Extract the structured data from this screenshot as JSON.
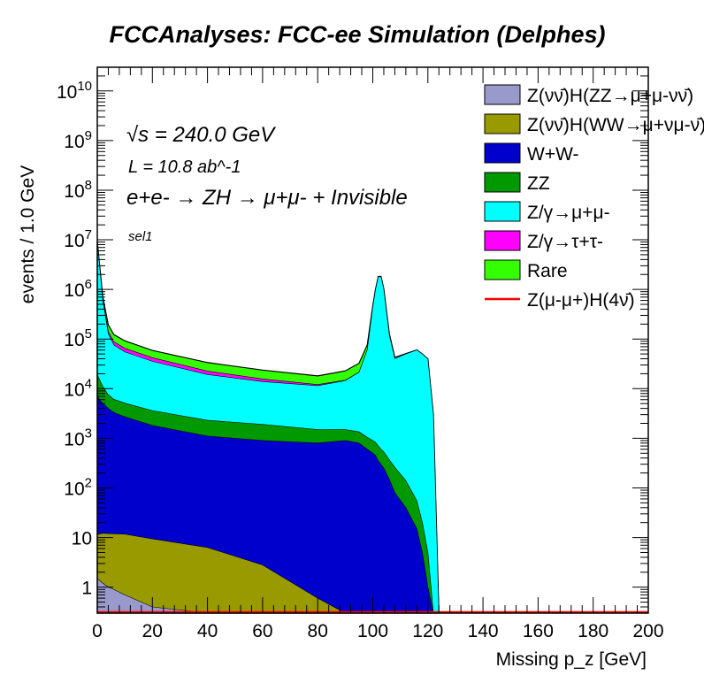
{
  "chart_data": {
    "type": "area",
    "title": "FCCAnalyses: FCC-ee Simulation (Delphes)",
    "xlabel": "Missing p_z [GeV]",
    "ylabel": "events / 1.0 GeV",
    "xlim": [
      0,
      200
    ],
    "ylim": [
      0.3,
      30000000000
    ],
    "log_y": true,
    "stacked": true,
    "grid": false,
    "legend_position": "top-right",
    "x_ticks": [
      "0",
      "20",
      "40",
      "60",
      "80",
      "100",
      "120",
      "140",
      "160",
      "180",
      "200"
    ],
    "y_ticks": [
      {
        "value": 1,
        "label": "1"
      },
      {
        "value": 10,
        "label": "10"
      },
      {
        "value": 100,
        "label": "10^2"
      },
      {
        "value": 1000,
        "label": "10^3"
      },
      {
        "value": 10000,
        "label": "10^4"
      },
      {
        "value": 100000,
        "label": "10^5"
      },
      {
        "value": 1000000,
        "label": "10^6"
      },
      {
        "value": 10000000,
        "label": "10^7"
      },
      {
        "value": 100000000,
        "label": "10^8"
      },
      {
        "value": 1000000000,
        "label": "10^9"
      },
      {
        "value": 10000000000,
        "label": "10^10"
      }
    ],
    "annotations": [
      {
        "text": "√s = 240.0 GeV"
      },
      {
        "text": "L = 10.8 ab^-1"
      },
      {
        "text": "e+e- → ZH → μ+μ- + Invisible"
      },
      {
        "text": "sel1"
      }
    ],
    "x": [
      0,
      2,
      4,
      6,
      10,
      20,
      40,
      60,
      80,
      90,
      95,
      98,
      100,
      101,
      102,
      103,
      104,
      106,
      108,
      112,
      116,
      118,
      120,
      122,
      124
    ],
    "series": [
      {
        "name": "Z(νν̄)H(ZZ→μ+μ-νν̄)",
        "color": "#9999cc",
        "values": [
          1.5,
          1.2,
          1.0,
          0.9,
          0.7,
          0.4,
          0.3,
          0.3,
          0,
          0,
          0,
          0,
          0,
          0,
          0,
          0,
          0,
          0,
          0,
          0,
          0,
          0,
          0,
          0,
          0
        ]
      },
      {
        "name": "Z(νν̄)H(WW→μ+νμ-ν̄)",
        "color": "#999900",
        "values": [
          10,
          11,
          11,
          11,
          11,
          9,
          6,
          2.5,
          0.6,
          0,
          0,
          0,
          0,
          0,
          0,
          0,
          0,
          0,
          0,
          0,
          0,
          0,
          0,
          0,
          0
        ]
      },
      {
        "name": "W+W-",
        "color": "#0000cc",
        "values": [
          7000,
          5000,
          4000,
          3300,
          2700,
          1800,
          1100,
          900,
          800,
          900,
          800,
          600,
          500,
          450,
          350,
          300,
          250,
          150,
          80,
          40,
          15,
          5,
          1,
          0,
          0
        ]
      },
      {
        "name": "ZZ",
        "color": "#009900",
        "values": [
          12000,
          6000,
          3500,
          2800,
          2400,
          1800,
          1200,
          1000,
          700,
          600,
          550,
          450,
          400,
          380,
          350,
          300,
          280,
          220,
          180,
          100,
          40,
          15,
          4,
          0,
          0
        ]
      },
      {
        "name": "Z/γ→μ+μ-",
        "color": "#00ffff",
        "values": [
          9000000,
          600000,
          120000,
          70000,
          50000,
          32000,
          17000,
          12000,
          10000,
          13000,
          20000,
          60000,
          450000,
          1000000,
          1800000,
          1800000,
          1000000,
          120000,
          40000,
          50000,
          60000,
          50000,
          40000,
          3000,
          0
        ]
      },
      {
        "name": "Z/γ→τ+τ-",
        "color": "#ff00ff",
        "values": [
          30000,
          20000,
          15000,
          12000,
          10000,
          6500,
          3300,
          1800,
          600,
          300,
          150,
          80,
          40,
          30,
          20,
          15,
          12,
          10,
          10,
          8,
          6,
          1,
          0.3,
          0,
          0
        ]
      },
      {
        "name": "Rare",
        "color": "#33ff00",
        "values": [
          150000,
          80000,
          50000,
          35000,
          27000,
          17000,
          11000,
          8000,
          6000,
          8000,
          11000,
          15000,
          20000,
          22000,
          25000,
          28000,
          25000,
          8000,
          2500,
          600,
          150,
          40,
          5,
          0,
          0
        ]
      },
      {
        "name": "Z(μ-μ+)H(4ν̄)",
        "color": "#ff0000",
        "style": "line",
        "values": [
          0.3,
          0.3,
          0.3,
          0.3,
          0.3,
          0.3,
          0.3,
          0.3,
          0.3,
          0.3,
          0.3,
          0.3,
          0.3,
          0.3,
          0.3,
          0.3,
          0.3,
          0.3,
          0.3,
          0.3,
          0.3,
          0.3,
          0.3,
          0.3,
          0.3
        ]
      }
    ],
    "legend": [
      {
        "label": "Z(νν̄)H(ZZ→μ+μ-νν̄)",
        "color": "#9999cc",
        "kind": "box"
      },
      {
        "label": "Z(νν̄)H(WW→μ+νμ-ν̄)",
        "color": "#999900",
        "kind": "box"
      },
      {
        "label": "W+W-",
        "color": "#0000cc",
        "kind": "box"
      },
      {
        "label": "ZZ",
        "color": "#009900",
        "kind": "box"
      },
      {
        "label": "Z/γ→μ+μ-",
        "color": "#00ffff",
        "kind": "box"
      },
      {
        "label": "Z/γ→τ+τ-",
        "color": "#ff00ff",
        "kind": "box"
      },
      {
        "label": "Rare",
        "color": "#33ff00",
        "kind": "box"
      },
      {
        "label": "Z(μ-μ+)H(4ν̄)",
        "color": "#ff0000",
        "kind": "line"
      }
    ]
  }
}
